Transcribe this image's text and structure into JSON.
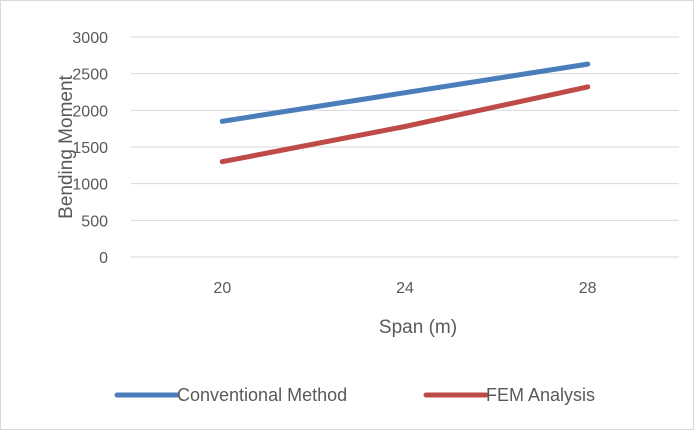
{
  "chart_data": {
    "type": "line",
    "title": "",
    "xlabel": "Span (m)",
    "ylabel": "Bending Moment",
    "categories": [
      "20",
      "24",
      "28"
    ],
    "ylim": [
      0,
      3000
    ],
    "yticks": [
      0,
      500,
      1000,
      1500,
      2000,
      2500,
      3000
    ],
    "grid": true,
    "legend_position": "bottom",
    "series": [
      {
        "name": "Conventional Method",
        "color": "#4a7ebb",
        "values": [
          1850,
          2240,
          2630
        ]
      },
      {
        "name": "FEM Analysis",
        "color": "#be4b48",
        "values": [
          1300,
          1780,
          2320
        ]
      }
    ]
  }
}
